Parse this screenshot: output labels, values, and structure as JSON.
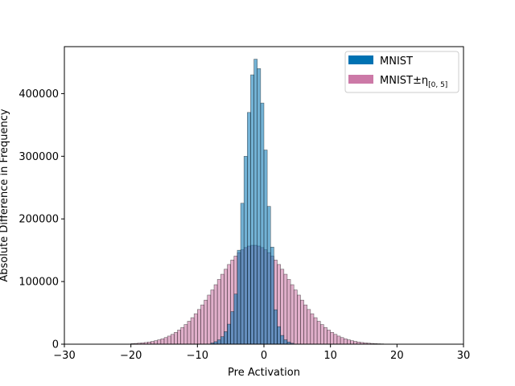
{
  "chart_data": {
    "type": "bar",
    "xlabel": "Pre Activation",
    "ylabel": "Absolute Difference in Frequency",
    "xlim": [
      -30,
      30
    ],
    "ylim": [
      0,
      475000
    ],
    "x_ticks": [
      "−30",
      "−20",
      "−10",
      "0",
      "10",
      "20",
      "30"
    ],
    "y_ticks": [
      "0",
      "100000",
      "200000",
      "300000",
      "400000"
    ],
    "grid": false,
    "legend_position": "top-right",
    "bin_width": 0.5,
    "series": [
      {
        "name": "MNIST",
        "color": "#0072B2",
        "bins": [
          {
            "x": -8,
            "y": 2000
          },
          {
            "x": -7.5,
            "y": 4000
          },
          {
            "x": -7,
            "y": 7000
          },
          {
            "x": -6.5,
            "y": 12000
          },
          {
            "x": -6,
            "y": 20000
          },
          {
            "x": -5.5,
            "y": 32000
          },
          {
            "x": -5,
            "y": 52000
          },
          {
            "x": -4.5,
            "y": 80000
          },
          {
            "x": -4,
            "y": 150000
          },
          {
            "x": -3.5,
            "y": 225000
          },
          {
            "x": -3,
            "y": 300000
          },
          {
            "x": -2.5,
            "y": 370000
          },
          {
            "x": -2,
            "y": 430000
          },
          {
            "x": -1.5,
            "y": 455000
          },
          {
            "x": -1,
            "y": 440000
          },
          {
            "x": -0.5,
            "y": 385000
          },
          {
            "x": 0,
            "y": 310000
          },
          {
            "x": 0.5,
            "y": 220000
          },
          {
            "x": 1,
            "y": 155000
          },
          {
            "x": 1.5,
            "y": 55000
          },
          {
            "x": 2,
            "y": 28000
          },
          {
            "x": 2.5,
            "y": 14000
          },
          {
            "x": 3,
            "y": 7000
          },
          {
            "x": 3.5,
            "y": 3500
          },
          {
            "x": 4,
            "y": 1500
          }
        ]
      },
      {
        "name": "MNIST±η[0,5]",
        "color": "#CC79A7",
        "mean": -1.5,
        "std": 5.7,
        "peak": 158000,
        "x_range": [
          -20,
          17.5
        ]
      }
    ]
  },
  "legend": {
    "items": [
      {
        "label": "MNIST",
        "color": "#0072B2"
      },
      {
        "label": "MNIST±η",
        "subscript": "[0, 5]",
        "color": "#CC79A7"
      }
    ]
  }
}
